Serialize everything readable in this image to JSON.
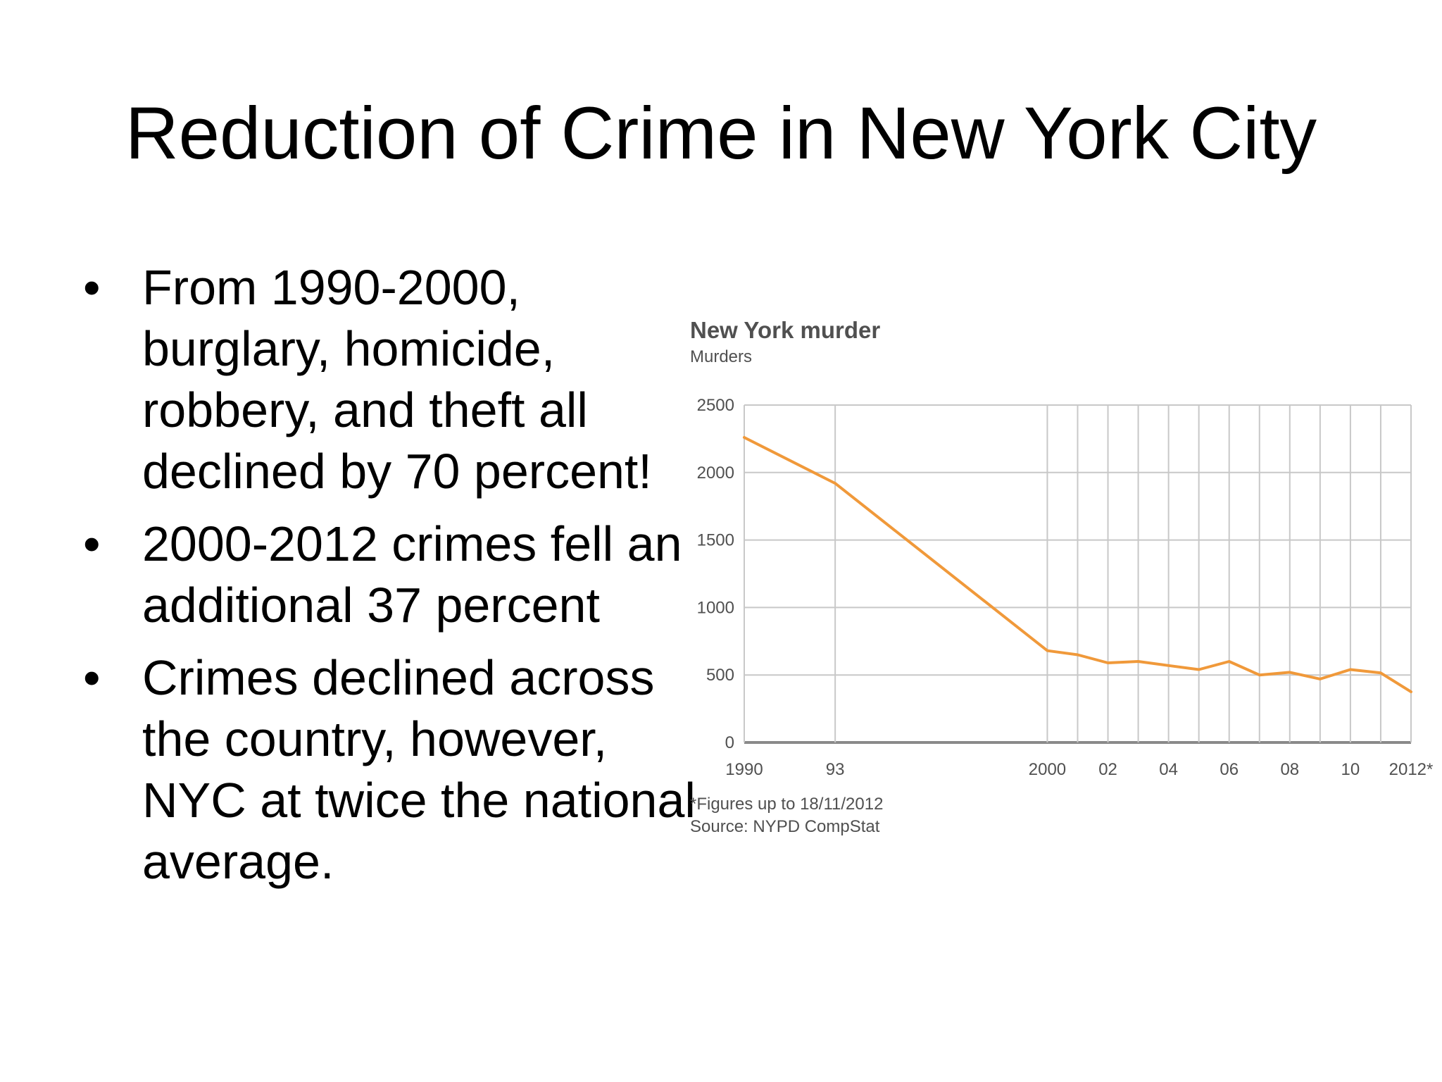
{
  "slide": {
    "title": "Reduction of Crime in New York City",
    "bullets": [
      "From 1990-2000, burglary, homicide, robbery, and theft all declined by 70 percent!",
      "2000-2012 crimes fell an additional 37 percent",
      "Crimes declined across the country, however, NYC at twice the national average."
    ],
    "bullet_symbol": "•"
  },
  "chart_data": {
    "type": "line",
    "title": "New York murder",
    "ylabel": "Murders",
    "note": "*Figures up to 18/11/2012",
    "source": "Source: NYPD CompStat",
    "x": [
      1990,
      1993,
      2000,
      2001,
      2002,
      2003,
      2004,
      2005,
      2006,
      2007,
      2008,
      2009,
      2010,
      2011,
      2012
    ],
    "xlim": [
      1990,
      2012
    ],
    "x_ticks": [
      {
        "value": 1990,
        "label": "1990"
      },
      {
        "value": 1993,
        "label": "93"
      },
      {
        "value": 2000,
        "label": "2000"
      },
      {
        "value": 2002,
        "label": "02"
      },
      {
        "value": 2004,
        "label": "04"
      },
      {
        "value": 2006,
        "label": "06"
      },
      {
        "value": 2008,
        "label": "08"
      },
      {
        "value": 2010,
        "label": "10"
      },
      {
        "value": 2012,
        "label": "2012*"
      }
    ],
    "x_gridlines": [
      1990,
      1993,
      2000,
      2001,
      2002,
      2003,
      2004,
      2005,
      2006,
      2007,
      2008,
      2009,
      2010,
      2011,
      2012
    ],
    "y_ticks": [
      0,
      500,
      1000,
      1500,
      2000,
      2500
    ],
    "ylim": [
      0,
      2500
    ],
    "grid": true,
    "series": [
      {
        "values": [
          2260,
          1920,
          680,
          650,
          590,
          600,
          570,
          540,
          600,
          500,
          520,
          470,
          540,
          515,
          375
        ],
        "color": "#f0993a"
      }
    ]
  }
}
